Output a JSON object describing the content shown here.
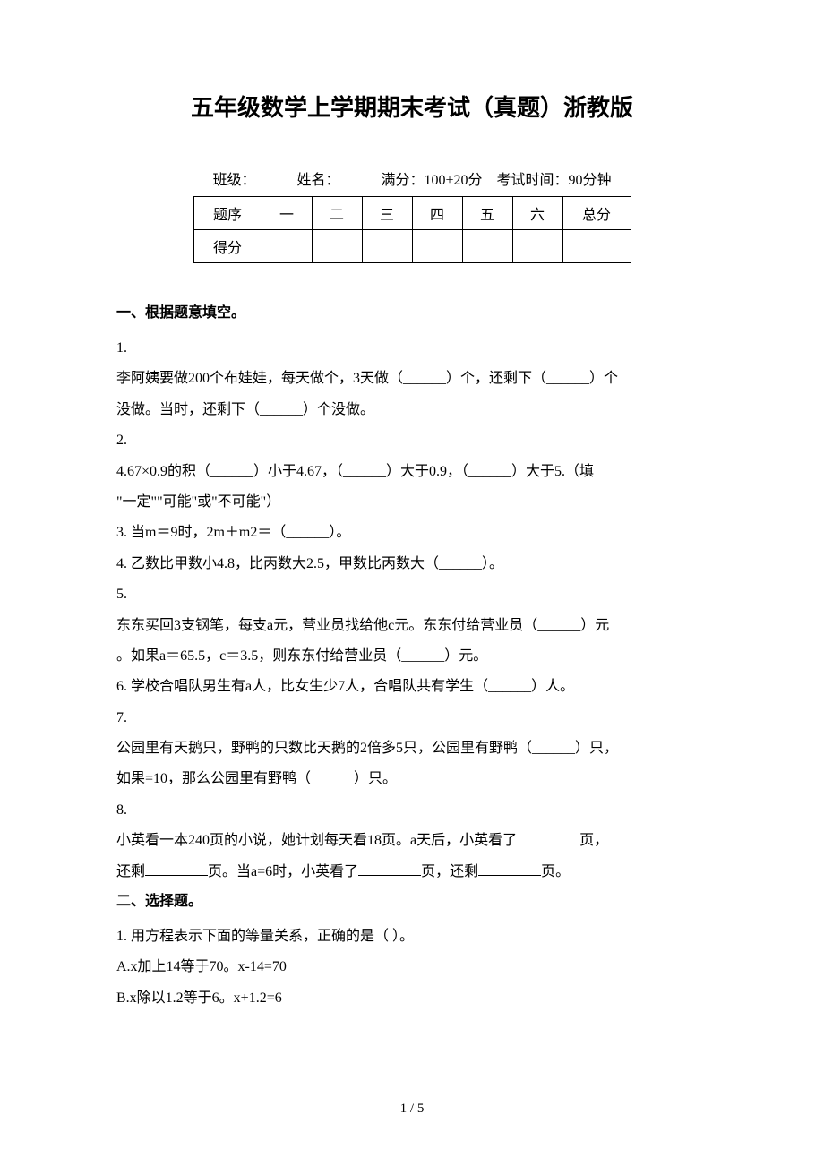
{
  "title": "五年级数学上学期期末考试（真题）浙教版",
  "info": {
    "class_label": "班级：",
    "name_label": "姓名：",
    "score_label": "满分：100+20分",
    "time_label": "考试时间：90分钟"
  },
  "score_table": {
    "headers": [
      "题序",
      "一",
      "二",
      "三",
      "四",
      "五",
      "六",
      "总分"
    ],
    "row2_label": "得分"
  },
  "section1": {
    "heading": "一、根据题意填空。",
    "q1_num": "1.",
    "q1_text_a": "李阿姨要做200个布娃娃，每天做个，3天做（______）个，还剩下（______）个",
    "q1_text_b": "没做。当时，还剩下（______）个没做。",
    "q2_num": "2.",
    "q2_text_a": "4.67×0.9的积（______）小于4.67，（______）大于0.9，（______）大于5.（填",
    "q2_text_b": "\"一定\"\"可能\"或\"不可能\"）",
    "q3": "3. 当m＝9时，2m＋m2＝（______）。",
    "q4": "4. 乙数比甲数小4.8，比丙数大2.5，甲数比丙数大（______）。",
    "q5_num": "5.",
    "q5_text_a": "东东买回3支钢笔，每支a元，营业员找给他c元。东东付给营业员（______）元",
    "q5_text_b": "。如果a＝65.5，c＝3.5，则东东付给营业员（______）元。",
    "q6": "6. 学校合唱队男生有a人，比女生少7人，合唱队共有学生（______）人。",
    "q7_num": "7.",
    "q7_text_a": "公园里有天鹅只，野鸭的只数比天鹅的2倍多5只，公园里有野鸭（______）只，",
    "q7_text_b": "如果=10，那么公园里有野鸭（______）只。",
    "q8_num": "8.",
    "q8_text_a_1": "小英看一本240页的小说，她计划每天看18页。a天后，小英看了",
    "q8_text_a_2": "页，",
    "q8_text_b_1": "还剩",
    "q8_text_b_2": "页。当a=6时，小英看了",
    "q8_text_b_3": "页，还剩",
    "q8_text_b_4": "页。"
  },
  "section2": {
    "heading": "二、选择题。",
    "q1": "1. 用方程表示下面的等量关系，正确的是（   ）。",
    "q1_a": "A.x加上14等于70。x-14=70",
    "q1_b": "B.x除以1.2等于6。x+1.2=6"
  },
  "footer": "1 / 5"
}
